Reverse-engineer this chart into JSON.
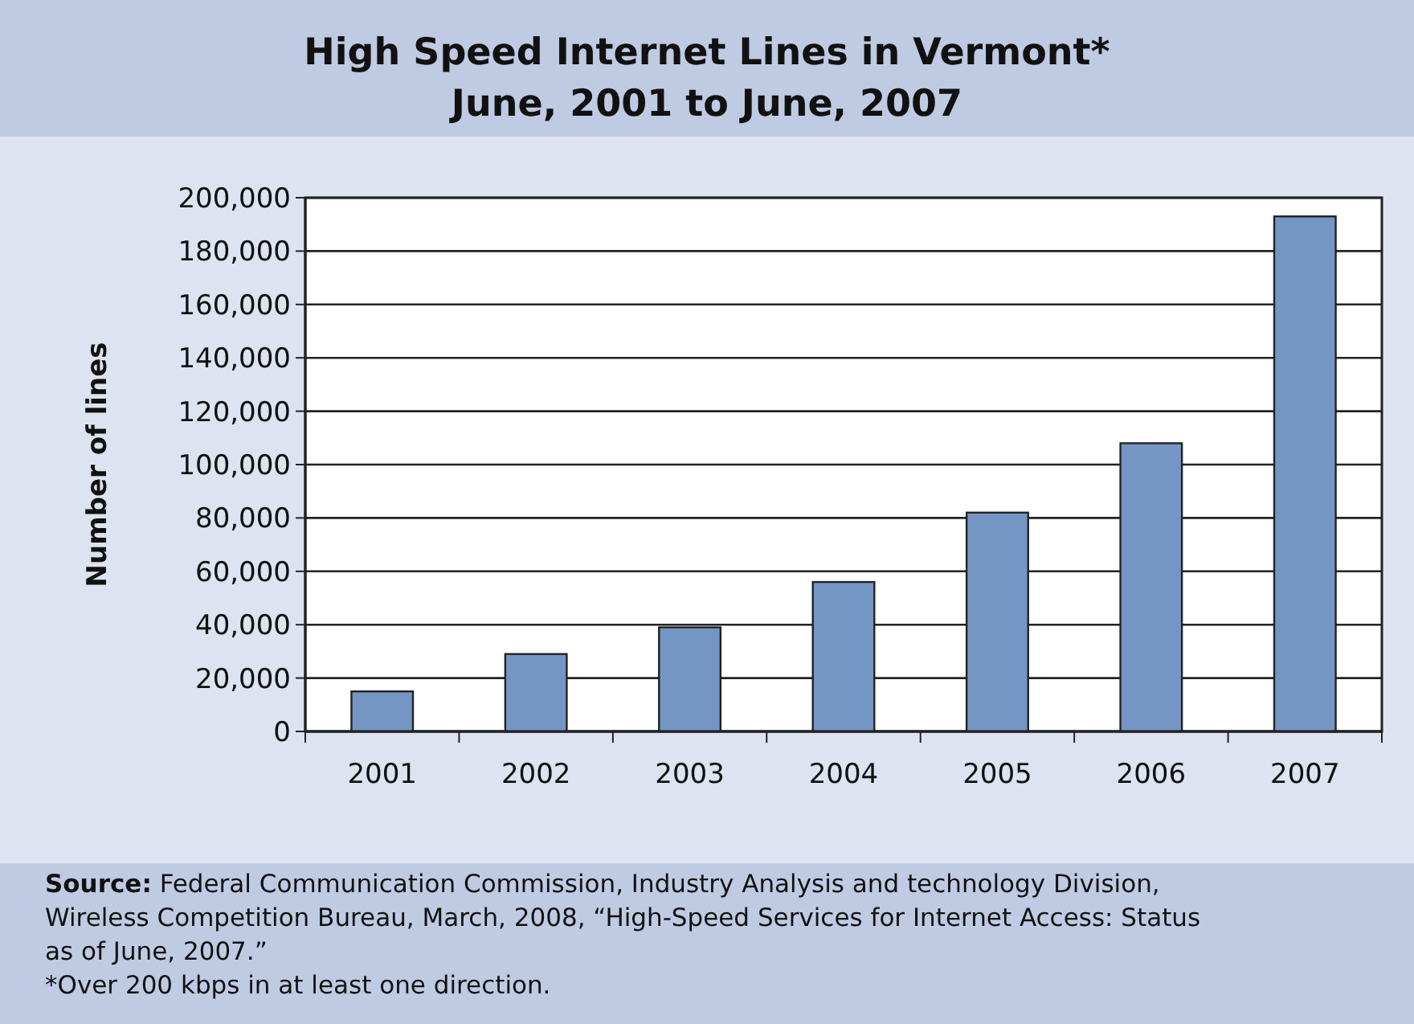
{
  "chart_data": {
    "type": "bar",
    "title": "High Speed Internet Lines in Vermont*",
    "subtitle": "June, 2001 to June, 2007",
    "ylabel": "Number of lines",
    "categories": [
      "2001",
      "2002",
      "2003",
      "2004",
      "2005",
      "2006",
      "2007"
    ],
    "values": [
      15000,
      29000,
      39000,
      56000,
      82000,
      108000,
      193000
    ],
    "color": "#7596c4",
    "ylim": [
      0,
      200000
    ],
    "yticks": [
      {
        "value": 0,
        "label": "0"
      },
      {
        "value": 20000,
        "label": "20,000"
      },
      {
        "value": 40000,
        "label": "40,000"
      },
      {
        "value": 60000,
        "label": "60,000"
      },
      {
        "value": 80000,
        "label": "80,000"
      },
      {
        "value": 100000,
        "label": "100,000"
      },
      {
        "value": 120000,
        "label": "120,000"
      },
      {
        "value": 140000,
        "label": "140,000"
      },
      {
        "value": 160000,
        "label": "160,000"
      },
      {
        "value": 180000,
        "label": "180,000"
      },
      {
        "value": 200000,
        "label": "200,000"
      }
    ],
    "grid": "y",
    "annotations": [
      "Source: Federal Communication Commission, Industry Analysis and technology Division, Wireless Competition Bureau, March, 2008, “High-Speed Services for Internet Access: Status as of June, 2007.”",
      "*Over 200 kbps in at least one direction."
    ]
  }
}
